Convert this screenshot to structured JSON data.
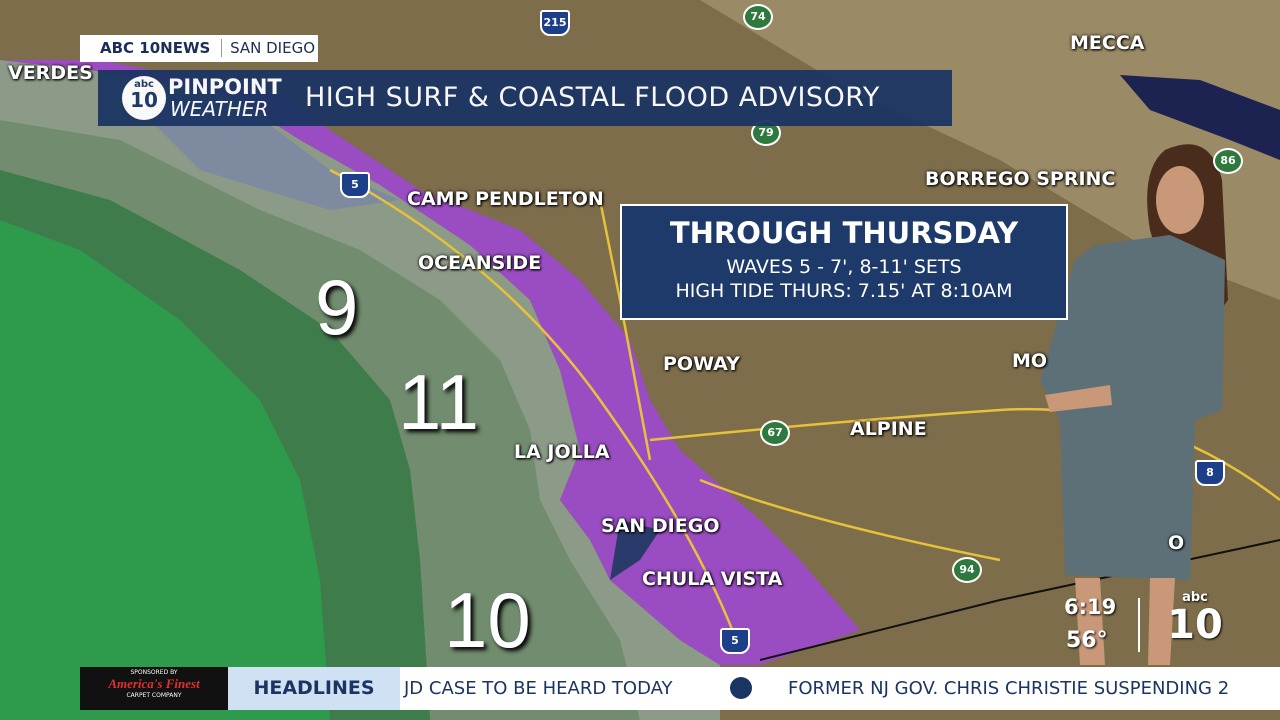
{
  "header": {
    "network": "ABC 10NEWS",
    "location": "SAN DIEGO",
    "brand_logo_small": "abc",
    "brand_logo_number": "10",
    "brand_top": "PINPOINT",
    "brand_bottom": "WEATHER",
    "title": "HIGH SURF & COASTAL FLOOD ADVISORY"
  },
  "info_box": {
    "title": "THROUGH THURSDAY",
    "lines": [
      "WAVES 5 - 7', 8-11' SETS",
      "HIGH TIDE THURS: 7.15' AT 8:10AM"
    ]
  },
  "map": {
    "places": [
      "VERDES",
      "MECCA",
      "CAMP PENDLETON",
      "OCEANSIDE",
      "BORREGO SPRINC",
      "POWAY",
      "MO",
      "ALPINE",
      "LA JOLLA",
      "SAN DIEGO",
      "CHULA VISTA",
      "O"
    ],
    "wave_heights": [
      9,
      11,
      10
    ],
    "highways": [
      "215",
      "74",
      "79",
      "5",
      "86",
      "67",
      "8",
      "94",
      "5"
    ]
  },
  "clock": {
    "time": "6:19",
    "temperature": "56°"
  },
  "logo": {
    "network": "abc",
    "number": "10"
  },
  "ticker": {
    "sponsor_label": "SPONSORED BY",
    "sponsor": "America's Finest",
    "sponsor_sub": "CARPET COMPANY",
    "section": "HEADLINES",
    "items": [
      "JD CASE TO BE HEARD TODAY",
      "FORMER NJ GOV. CHRIS CHRISTIE SUSPENDING 2"
    ]
  }
}
